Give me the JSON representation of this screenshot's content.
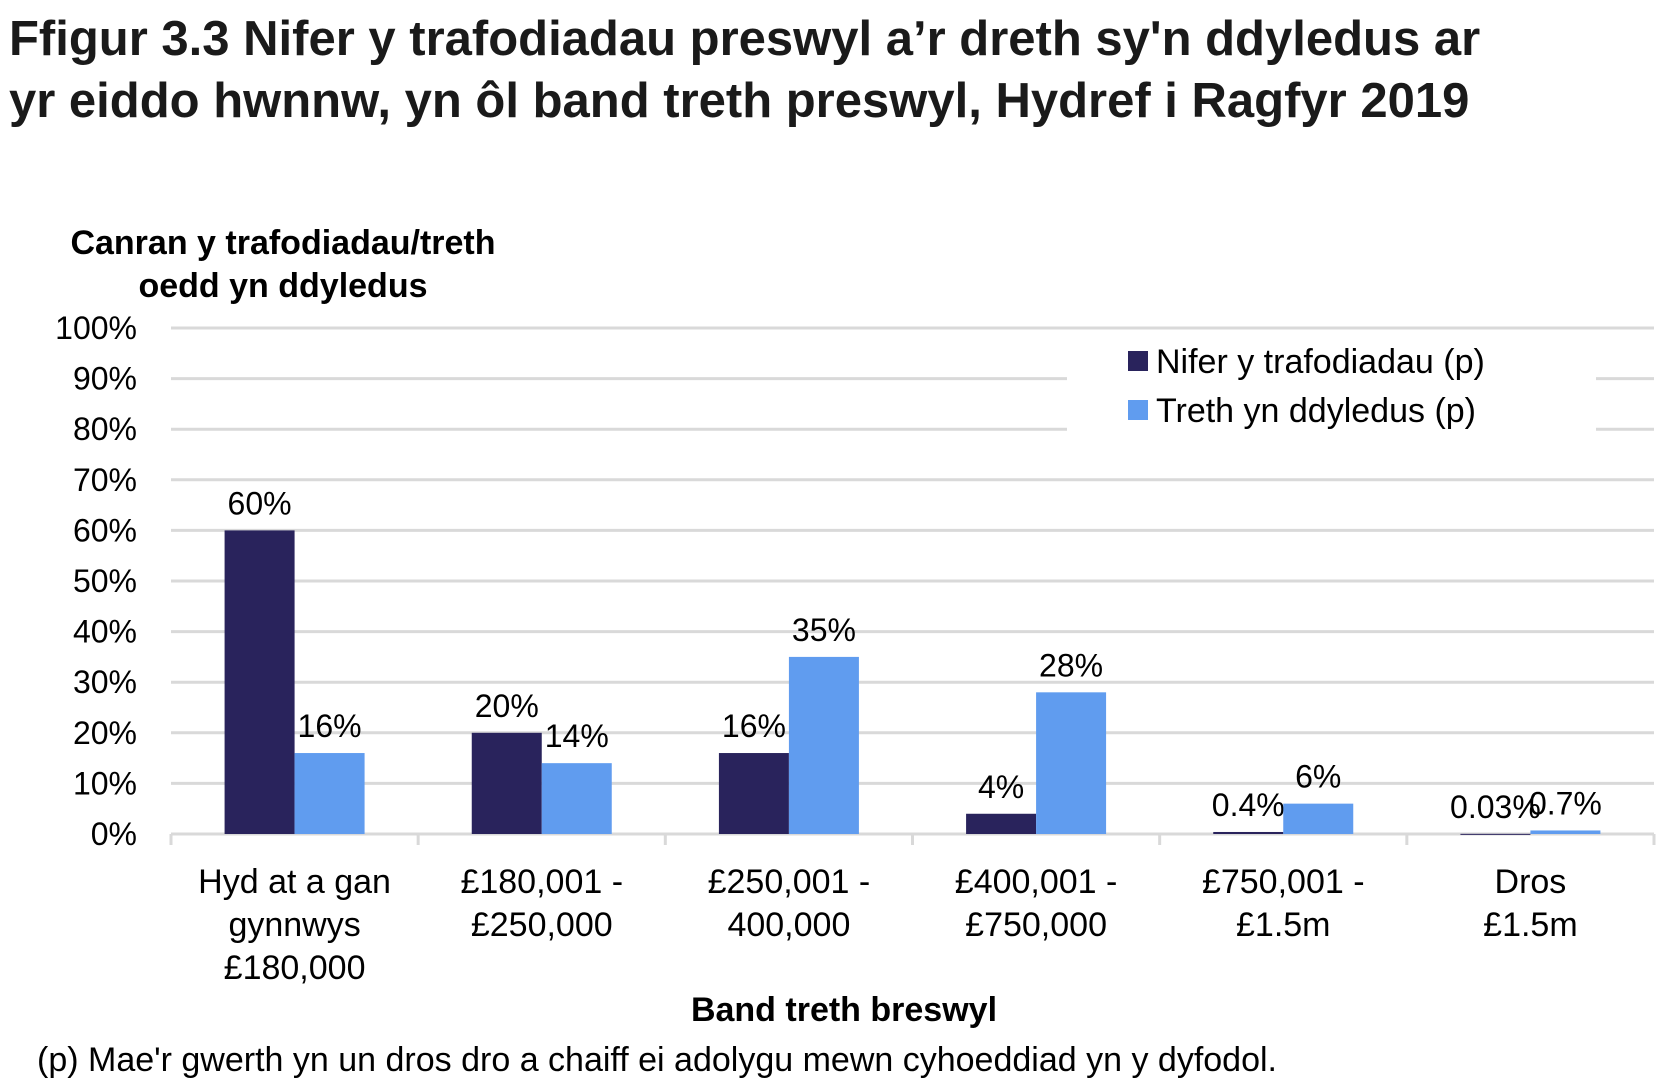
{
  "title_line1": "Ffigur 3.3  Nifer y trafodiadau preswyl a’r dreth sy'n ddyledus ar",
  "title_line2": "yr eiddo hwnnw, yn ôl band treth preswyl, Hydref i Ragfyr 2019",
  "footnote": "(p) Mae'r gwerth yn un dros dro a chaiff ei adolygu mewn cyhoeddiad yn y dyfodol.",
  "chart_data": {
    "type": "bar",
    "ylabel_lines": [
      "Canran y trafodiadau/treth",
      "oedd yn ddyledus"
    ],
    "xlabel": "Band treth breswyl",
    "ylim": [
      0,
      100
    ],
    "yticks": [
      "0%",
      "10%",
      "20%",
      "30%",
      "40%",
      "50%",
      "60%",
      "70%",
      "80%",
      "90%",
      "100%"
    ],
    "grid": true,
    "legend_position": "top-right",
    "categories": [
      [
        "Hyd at a gan",
        "gynnwys",
        "£180,000"
      ],
      [
        "£180,001 -",
        "£250,000"
      ],
      [
        "£250,001 -",
        "400,000"
      ],
      [
        "£400,001 -",
        "£750,000"
      ],
      [
        "£750,001 -",
        "£1.5m"
      ],
      [
        "Dros",
        "£1.5m"
      ]
    ],
    "series": [
      {
        "name": "Nifer y trafodiadau (p)",
        "color": "#29235c",
        "values": [
          60,
          20,
          16,
          4,
          0.4,
          0.03
        ],
        "labels": [
          "60%",
          "20%",
          "16%",
          "4%",
          "0.4%",
          "0.03%"
        ]
      },
      {
        "name": "Treth yn ddyledus (p)",
        "color": "#609cef",
        "values": [
          16,
          14,
          35,
          28,
          6,
          0.7
        ],
        "labels": [
          "16%",
          "14%",
          "35%",
          "28%",
          "6%",
          "0.7%"
        ]
      }
    ]
  }
}
